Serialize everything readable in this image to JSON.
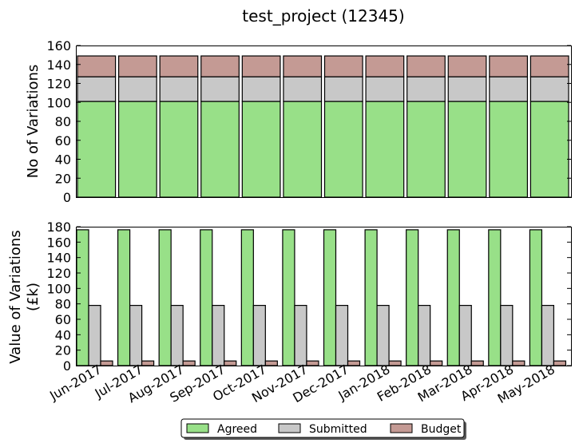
{
  "title": "test_project (12345)",
  "colors": {
    "agreed": "#98e088",
    "submitted": "#c8c8c8",
    "budget": "#c49a94",
    "edge": "#000000"
  },
  "legend": {
    "placement": "bottom-center",
    "shadow": true
  },
  "chart_data": [
    {
      "type": "bar",
      "stacked": true,
      "title": "test_project (12345)",
      "ylabel": "No of Variations",
      "ylim": [
        0,
        160
      ],
      "yticks": [
        0,
        20,
        40,
        60,
        80,
        100,
        120,
        140,
        160
      ],
      "categories": [
        "Jun-2017",
        "Jul-2017",
        "Aug-2017",
        "Sep-2017",
        "Oct-2017",
        "Nov-2017",
        "Dec-2017",
        "Jan-2018",
        "Feb-2018",
        "Mar-2018",
        "Apr-2018",
        "May-2018"
      ],
      "series": [
        {
          "name": "Agreed",
          "color": "#98e088",
          "values": [
            101,
            101,
            101,
            101,
            101,
            101,
            101,
            101,
            101,
            101,
            101,
            101
          ]
        },
        {
          "name": "Submitted",
          "color": "#c8c8c8",
          "values": [
            26,
            26,
            26,
            26,
            26,
            26,
            26,
            26,
            26,
            26,
            26,
            26
          ]
        },
        {
          "name": "Budget",
          "color": "#c49a94",
          "values": [
            22,
            22,
            22,
            22,
            22,
            22,
            22,
            22,
            22,
            22,
            22,
            22
          ]
        }
      ]
    },
    {
      "type": "bar",
      "stacked": false,
      "ylabel_lines": [
        "Value of Variations",
        "(£k)"
      ],
      "ylim": [
        0,
        180
      ],
      "yticks": [
        0,
        20,
        40,
        60,
        80,
        100,
        120,
        140,
        160,
        180
      ],
      "categories": [
        "Jun-2017",
        "Jul-2017",
        "Aug-2017",
        "Sep-2017",
        "Oct-2017",
        "Nov-2017",
        "Dec-2017",
        "Jan-2018",
        "Feb-2018",
        "Mar-2018",
        "Apr-2018",
        "May-2018"
      ],
      "series": [
        {
          "name": "Agreed",
          "color": "#98e088",
          "values": [
            176,
            176,
            176,
            176,
            176,
            176,
            176,
            176,
            176,
            176,
            176,
            176
          ]
        },
        {
          "name": "Submitted",
          "color": "#c8c8c8",
          "values": [
            78,
            78,
            78,
            78,
            78,
            78,
            78,
            78,
            78,
            78,
            78,
            78
          ]
        },
        {
          "name": "Budget",
          "color": "#c49a94",
          "values": [
            6,
            6,
            6,
            6,
            6,
            6,
            6,
            6,
            6,
            6,
            6,
            6
          ]
        }
      ]
    }
  ]
}
